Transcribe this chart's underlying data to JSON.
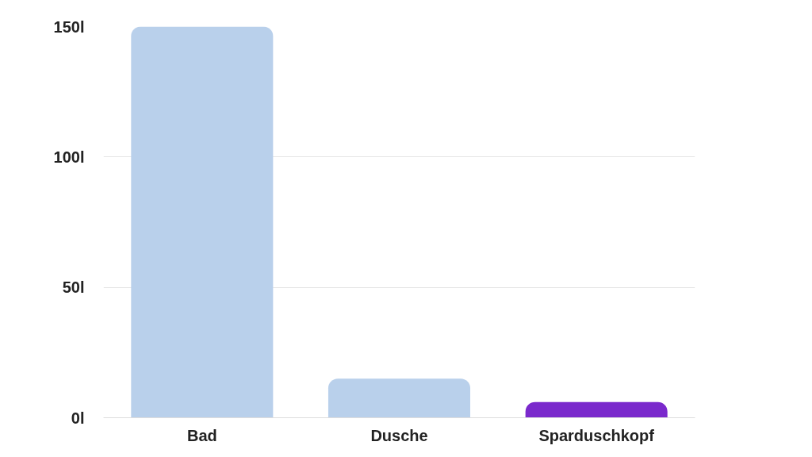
{
  "chart_data": {
    "type": "bar",
    "categories": [
      "Bad",
      "Dusche",
      "Sparduschkopf"
    ],
    "values": [
      150,
      15,
      6
    ],
    "colors": [
      "#b9d0eb",
      "#b9d0eb",
      "#7a29cc"
    ],
    "ylim": [
      0,
      150
    ],
    "yticks": [
      {
        "value": 0,
        "label": "0l"
      },
      {
        "value": 50,
        "label": "50l"
      },
      {
        "value": 100,
        "label": "100l"
      },
      {
        "value": 150,
        "label": "150l"
      }
    ],
    "grid": "y"
  }
}
